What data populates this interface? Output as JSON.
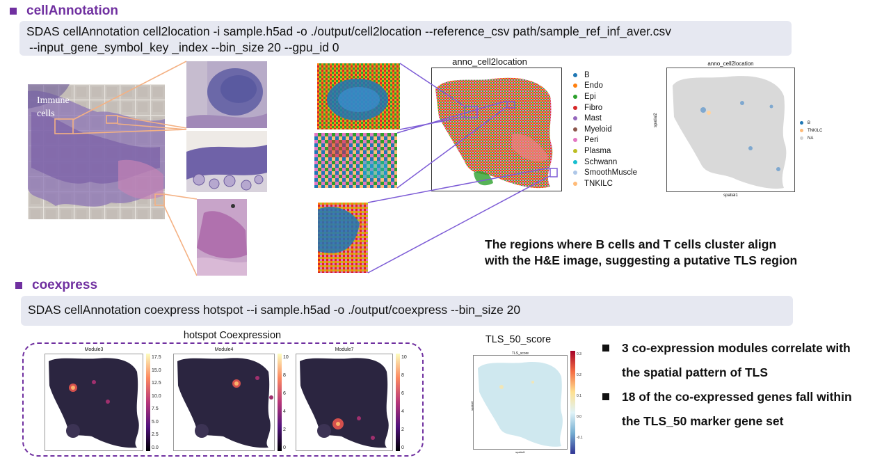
{
  "cell_annotation": {
    "section_title": "cellAnnotation",
    "command_line_1": "SDAS cellAnnotation cell2location -i sample.h5ad -o ./output/cell2location --reference_csv path/sample_ref_inf_aver.csv",
    "command_line_2": "--input_gene_symbol_key _index --bin_size 20 --gpu_id 0",
    "he_label_line1": "Immune",
    "he_label_line2": "cells",
    "anno_title": "anno_cell2location",
    "legend": [
      {
        "label": "B",
        "color": "#1f77b4"
      },
      {
        "label": "Endo",
        "color": "#ff7f0e"
      },
      {
        "label": "Epi",
        "color": "#2ca02c"
      },
      {
        "label": "Fibro",
        "color": "#d62728"
      },
      {
        "label": "Mast",
        "color": "#9467bd"
      },
      {
        "label": "Myeloid",
        "color": "#8c564b"
      },
      {
        "label": "Peri",
        "color": "#e377c2"
      },
      {
        "label": "Plasma",
        "color": "#bcbd22"
      },
      {
        "label": "Schwann",
        "color": "#17becf"
      },
      {
        "label": "SmoothMuscle",
        "color": "#aec7e8"
      },
      {
        "label": "TNKILC",
        "color": "#ffbb78"
      }
    ],
    "small_panel": {
      "title": "anno_cell2location",
      "xlabel": "spatial1",
      "ylabel": "spatial2",
      "legend": [
        {
          "label": "B",
          "color": "#1f77b4"
        },
        {
          "label": "TNKILC",
          "color": "#ffbb78"
        },
        {
          "label": "NA",
          "color": "#d3d3d3"
        }
      ]
    },
    "note_line1": "The regions where B cells and T cells cluster align",
    "note_line2": "with the H&E image, suggesting a putative TLS region"
  },
  "coexpress": {
    "section_title": "coexpress",
    "command": "SDAS cellAnnotation coexpress hotspot --i sample.h5ad -o ./output/coexpress --bin_size 20",
    "hotspot_title": "hotspot Coexpression",
    "modules": [
      {
        "name": "Module3",
        "ticks": [
          "17.5",
          "15.0",
          "12.5",
          "10.0",
          "7.5",
          "5.0",
          "2.5",
          "0.0"
        ]
      },
      {
        "name": "Module4",
        "ticks": [
          "10",
          "8",
          "6",
          "4",
          "2",
          "0"
        ]
      },
      {
        "name": "Module7",
        "ticks": [
          "10",
          "8",
          "6",
          "4",
          "2",
          "0"
        ]
      }
    ],
    "tls_heading": "TLS_50_score",
    "tls_panel": {
      "title": "TLS_score",
      "xlabel": "spatial1",
      "ylabel": "spatial2",
      "ticks": [
        "0.3",
        "0.2",
        "0.1",
        "0.0",
        "-0.1"
      ]
    },
    "bullets": [
      {
        "line1": "3 co-expression modules correlate with",
        "line2": "the spatial pattern of TLS"
      },
      {
        "line1": "18 of the co-expressed genes fall within",
        "line2": "the TLS_50 marker gene set"
      }
    ]
  },
  "colors": {
    "accent_purple": "#7030a0",
    "command_box": "#e6e8f1",
    "connector_orange": "#f4b183",
    "connector_violet": "#7d5cd6",
    "dashed_border": "#7030a0"
  }
}
